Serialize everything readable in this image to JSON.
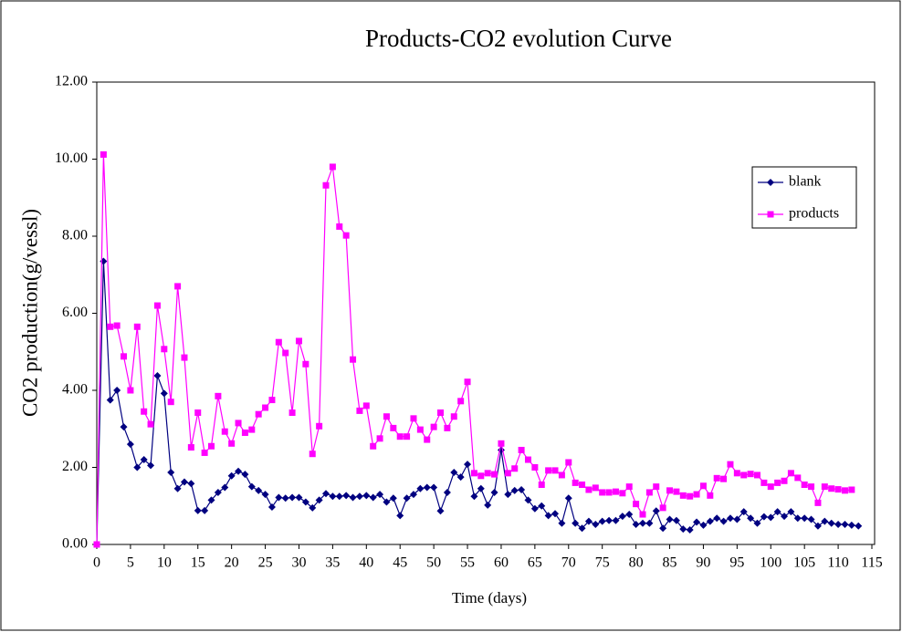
{
  "chart_data": {
    "type": "line",
    "title": "Products-CO2  evolution Curve",
    "x_label": "Time (days)",
    "y_label": "CO2 production(g/vessl)",
    "x": [
      0,
      1,
      2,
      3,
      4,
      5,
      6,
      7,
      8,
      9,
      10,
      11,
      12,
      13,
      14,
      15,
      16,
      17,
      18,
      19,
      20,
      21,
      22,
      23,
      24,
      25,
      26,
      27,
      28,
      29,
      30,
      31,
      32,
      33,
      34,
      35,
      36,
      37,
      38,
      39,
      40,
      41,
      42,
      43,
      44,
      45,
      46,
      47,
      48,
      49,
      50,
      51,
      52,
      53,
      54,
      55,
      56,
      57,
      58,
      59,
      60,
      61,
      62,
      63,
      64,
      65,
      66,
      67,
      68,
      69,
      70,
      71,
      72,
      73,
      74,
      75,
      76,
      77,
      78,
      79,
      80,
      81,
      82,
      83,
      84,
      85,
      86,
      87,
      88,
      89,
      90,
      91,
      92,
      93,
      94,
      95,
      96,
      97,
      98,
      99,
      100,
      101,
      102,
      103,
      104,
      105,
      106,
      107,
      108,
      109,
      110,
      111,
      112,
      113
    ],
    "series": [
      {
        "name": "blank",
        "color": "#000080",
        "marker": "diamond",
        "values": [
          0,
          7.35,
          3.75,
          4.0,
          3.05,
          2.6,
          2.0,
          2.2,
          2.05,
          4.38,
          3.92,
          1.87,
          1.45,
          1.62,
          1.58,
          0.88,
          0.88,
          1.15,
          1.35,
          1.48,
          1.78,
          1.9,
          1.82,
          1.5,
          1.4,
          1.3,
          0.97,
          1.22,
          1.2,
          1.22,
          1.22,
          1.1,
          0.95,
          1.15,
          1.32,
          1.25,
          1.25,
          1.27,
          1.22,
          1.25,
          1.27,
          1.22,
          1.3,
          1.1,
          1.2,
          0.75,
          1.2,
          1.3,
          1.45,
          1.48,
          1.48,
          0.87,
          1.35,
          1.87,
          1.75,
          2.08,
          1.25,
          1.45,
          1.02,
          1.35,
          2.45,
          1.3,
          1.4,
          1.42,
          1.15,
          0.93,
          1.0,
          0.75,
          0.8,
          0.55,
          1.2,
          0.55,
          0.42,
          0.6,
          0.52,
          0.6,
          0.62,
          0.62,
          0.73,
          0.78,
          0.52,
          0.55,
          0.55,
          0.87,
          0.42,
          0.65,
          0.62,
          0.4,
          0.38,
          0.58,
          0.5,
          0.6,
          0.68,
          0.6,
          0.68,
          0.65,
          0.85,
          0.68,
          0.55,
          0.72,
          0.7,
          0.85,
          0.73,
          0.85,
          0.68,
          0.68,
          0.65,
          0.48,
          0.6,
          0.55,
          0.52,
          0.52,
          0.5,
          0.48
        ]
      },
      {
        "name": "products",
        "color": "#FF00FF",
        "marker": "square",
        "values": [
          0,
          10.12,
          5.65,
          5.68,
          4.88,
          4.0,
          5.65,
          3.45,
          3.12,
          6.2,
          5.07,
          3.7,
          6.7,
          4.85,
          2.52,
          3.42,
          2.38,
          2.55,
          3.85,
          2.93,
          2.62,
          3.15,
          2.9,
          2.98,
          3.38,
          3.55,
          3.75,
          5.25,
          4.97,
          3.42,
          5.28,
          4.68,
          2.35,
          3.07,
          9.32,
          9.8,
          8.25,
          8.02,
          4.8,
          3.47,
          3.6,
          2.55,
          2.75,
          3.32,
          3.02,
          2.8,
          2.8,
          3.27,
          2.98,
          2.72,
          3.05,
          3.42,
          3.02,
          3.32,
          3.72,
          4.22,
          1.85,
          1.78,
          1.85,
          1.82,
          2.62,
          1.85,
          1.97,
          2.45,
          2.2,
          2.0,
          1.55,
          1.92,
          1.92,
          1.8,
          2.13,
          1.6,
          1.55,
          1.42,
          1.47,
          1.35,
          1.35,
          1.37,
          1.33,
          1.5,
          1.05,
          0.78,
          1.35,
          1.5,
          0.95,
          1.4,
          1.37,
          1.27,
          1.25,
          1.3,
          1.52,
          1.27,
          1.72,
          1.7,
          2.08,
          1.85,
          1.8,
          1.83,
          1.8,
          1.6,
          1.5,
          1.6,
          1.65,
          1.85,
          1.73,
          1.55,
          1.5,
          1.08,
          1.5,
          1.45,
          1.43,
          1.4,
          1.42,
          null
        ]
      }
    ],
    "xlim": [
      0,
      115
    ],
    "xticks": [
      0,
      5,
      10,
      15,
      20,
      25,
      30,
      35,
      40,
      45,
      50,
      55,
      60,
      65,
      70,
      75,
      80,
      85,
      90,
      95,
      100,
      105,
      110,
      115
    ],
    "ylim": [
      0,
      12
    ],
    "yticks": [
      {
        "value": 0,
        "label": "0.00"
      },
      {
        "value": 2,
        "label": "2.00"
      },
      {
        "value": 4,
        "label": "4.00"
      },
      {
        "value": 6,
        "label": "6.00"
      },
      {
        "value": 8,
        "label": "8.00"
      },
      {
        "value": 10,
        "label": "10.00"
      },
      {
        "value": 12,
        "label": "12.00"
      }
    ],
    "grid": false,
    "legend_position": "right"
  }
}
